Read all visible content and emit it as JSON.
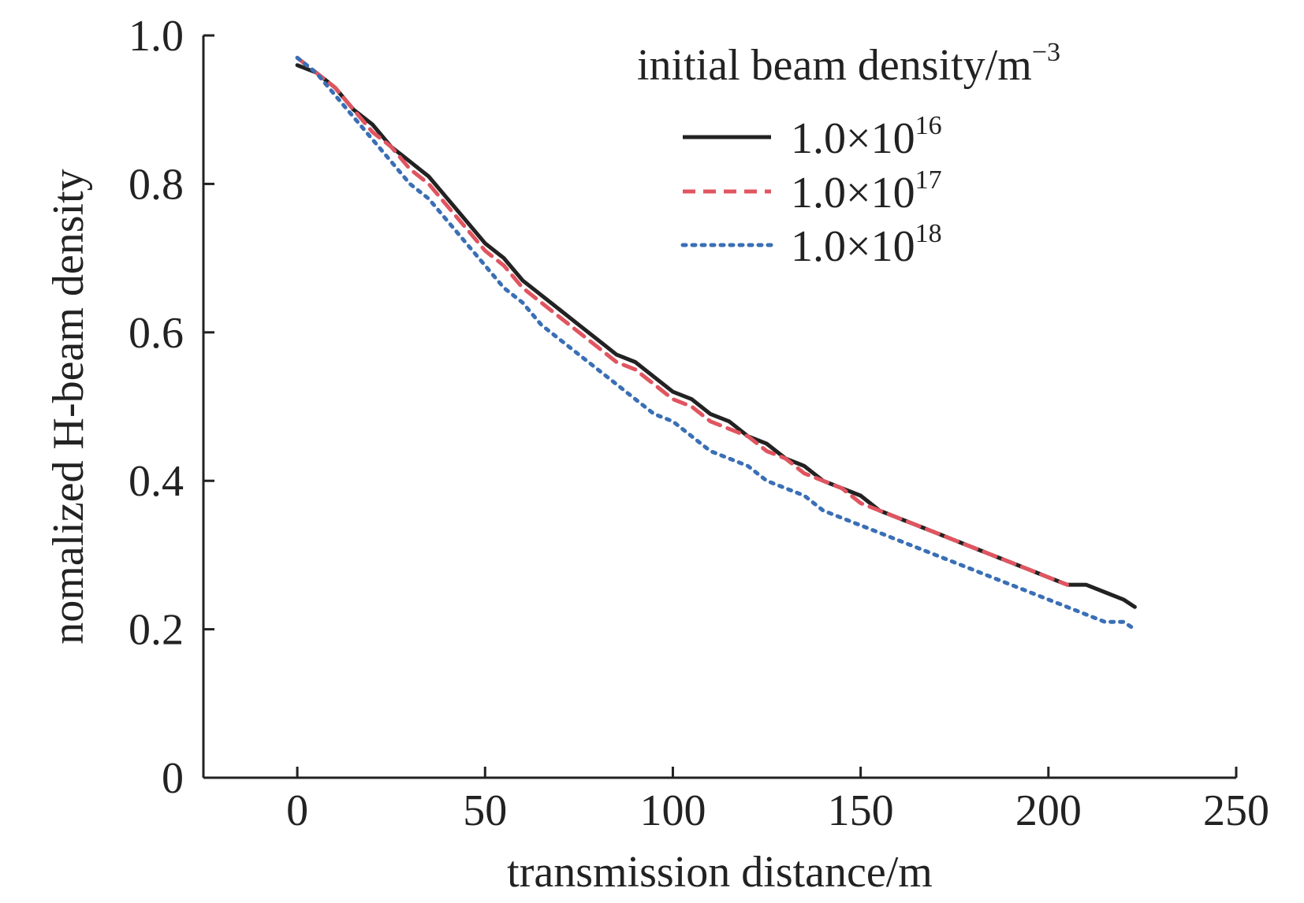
{
  "chart_data": {
    "type": "line",
    "xlabel": "transmission distance/m",
    "ylabel": "nomalized H-beam density",
    "xlim": [
      -25,
      250
    ],
    "ylim": [
      0,
      1.0
    ],
    "xticks": [
      0,
      50,
      100,
      150,
      200,
      250
    ],
    "yticks": [
      0,
      0.2,
      0.4,
      0.6,
      0.8,
      1.0
    ],
    "xtick_labels": [
      "0",
      "50",
      "100",
      "150",
      "200",
      "250"
    ],
    "ytick_labels": [
      "0",
      "0.2",
      "0.4",
      "0.6",
      "0.8",
      "1.0"
    ],
    "grid": false,
    "legend": {
      "title": "initial beam density/m",
      "title_sup": "−3",
      "placement": "top-right",
      "entries": [
        {
          "base": "1.0×10",
          "exp": "16"
        },
        {
          "base": "1.0×10",
          "exp": "17"
        },
        {
          "base": "1.0×10",
          "exp": "18"
        }
      ]
    },
    "series": [
      {
        "name": "1.0×10^16",
        "color": "#222222",
        "style": "solid",
        "x": [
          0,
          5,
          10,
          15,
          20,
          25,
          30,
          35,
          40,
          45,
          50,
          55,
          60,
          65,
          70,
          75,
          80,
          85,
          90,
          95,
          100,
          105,
          110,
          115,
          120,
          125,
          130,
          135,
          140,
          145,
          150,
          155,
          160,
          165,
          170,
          175,
          180,
          185,
          190,
          195,
          200,
          205,
          210,
          215,
          220,
          223
        ],
        "y": [
          0.96,
          0.95,
          0.93,
          0.9,
          0.88,
          0.85,
          0.83,
          0.81,
          0.78,
          0.75,
          0.72,
          0.7,
          0.67,
          0.65,
          0.63,
          0.61,
          0.59,
          0.57,
          0.56,
          0.54,
          0.52,
          0.51,
          0.49,
          0.48,
          0.46,
          0.45,
          0.43,
          0.42,
          0.4,
          0.39,
          0.38,
          0.36,
          0.35,
          0.34,
          0.33,
          0.32,
          0.31,
          0.3,
          0.29,
          0.28,
          0.27,
          0.26,
          0.26,
          0.25,
          0.24,
          0.23
        ]
      },
      {
        "name": "1.0×10^17",
        "color": "#e05560",
        "style": "dashed",
        "x": [
          0,
          5,
          10,
          15,
          20,
          25,
          30,
          35,
          40,
          45,
          50,
          55,
          60,
          65,
          70,
          75,
          80,
          85,
          90,
          95,
          100,
          105,
          110,
          115,
          120,
          125,
          130,
          135,
          140,
          145,
          150,
          155,
          160,
          165,
          170,
          175,
          180,
          185,
          190,
          195,
          200,
          205
        ],
        "y": [
          0.97,
          0.95,
          0.93,
          0.9,
          0.87,
          0.85,
          0.82,
          0.8,
          0.77,
          0.74,
          0.71,
          0.69,
          0.66,
          0.64,
          0.62,
          0.6,
          0.58,
          0.56,
          0.55,
          0.53,
          0.51,
          0.5,
          0.48,
          0.47,
          0.46,
          0.44,
          0.43,
          0.41,
          0.4,
          0.39,
          0.37,
          0.36,
          0.35,
          0.34,
          0.33,
          0.32,
          0.31,
          0.3,
          0.29,
          0.28,
          0.27,
          0.26
        ]
      },
      {
        "name": "1.0×10^18",
        "color": "#3a6fb5",
        "style": "dotted",
        "x": [
          0,
          5,
          10,
          15,
          20,
          25,
          30,
          35,
          40,
          45,
          50,
          55,
          60,
          65,
          70,
          75,
          80,
          85,
          90,
          95,
          100,
          105,
          110,
          115,
          120,
          125,
          130,
          135,
          140,
          145,
          150,
          155,
          160,
          165,
          170,
          175,
          180,
          185,
          190,
          195,
          200,
          205,
          210,
          215,
          220,
          223
        ],
        "y": [
          0.97,
          0.95,
          0.92,
          0.89,
          0.86,
          0.83,
          0.8,
          0.78,
          0.75,
          0.72,
          0.69,
          0.66,
          0.64,
          0.61,
          0.59,
          0.57,
          0.55,
          0.53,
          0.51,
          0.49,
          0.48,
          0.46,
          0.44,
          0.43,
          0.42,
          0.4,
          0.39,
          0.38,
          0.36,
          0.35,
          0.34,
          0.33,
          0.32,
          0.31,
          0.3,
          0.29,
          0.28,
          0.27,
          0.26,
          0.25,
          0.24,
          0.23,
          0.22,
          0.21,
          0.21,
          0.2
        ]
      }
    ]
  }
}
